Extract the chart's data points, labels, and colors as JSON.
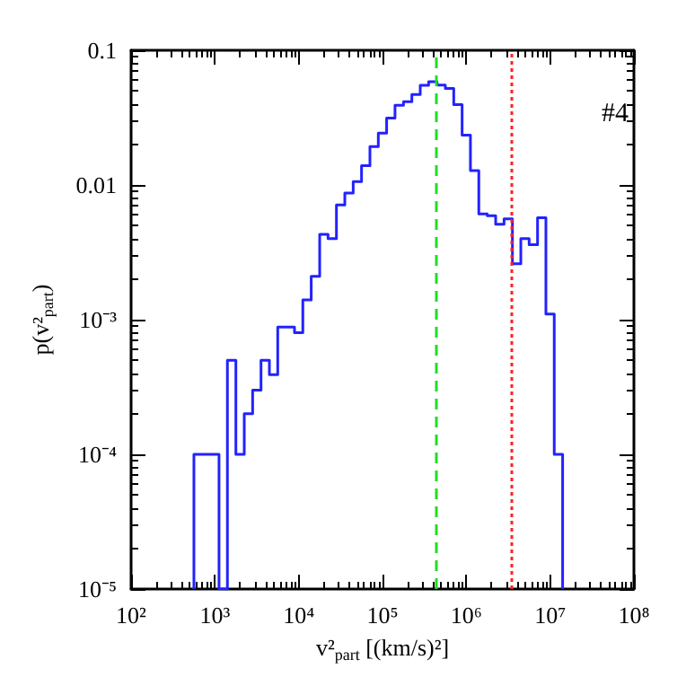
{
  "chart_data": {
    "type": "histogram",
    "xlabel": "v²$_{part}$ [(km/s)²]",
    "ylabel": "p(v²$_{part}$)",
    "annotations": [
      "#4"
    ],
    "log": "xy",
    "color": "#2222ff",
    "bins": [
      562,
      708,
      891,
      1120,
      1410,
      1780,
      2240,
      2820,
      3550,
      4470,
      5620,
      7080,
      8910,
      11200,
      14100,
      17800,
      22400,
      28200,
      35500,
      44700,
      56200,
      70800,
      89100,
      112000,
      141000,
      178000,
      224000,
      282000,
      355000,
      447000,
      562000,
      708000,
      891000,
      1120000,
      1410000,
      1780000,
      2240000,
      2820000,
      3550000,
      4470000,
      5620000,
      7080000,
      8910000,
      11200000,
      14100000
    ],
    "values": [
      0.0001,
      0.0001,
      0.0001,
      null,
      0.0005,
      0.0001,
      0.0002,
      0.0003,
      0.0005,
      0.00039,
      0.00088,
      0.00088,
      0.0008,
      0.0014,
      0.0021,
      0.0043,
      0.004,
      0.0071,
      0.0087,
      0.0106,
      0.0139,
      0.0193,
      0.0243,
      0.0314,
      0.039,
      0.0415,
      0.047,
      0.055,
      0.0585,
      0.0552,
      0.052,
      0.0395,
      0.0234,
      0.0128,
      0.0061,
      0.0059,
      0.0051,
      0.0056,
      0.0026,
      0.004,
      0.0036,
      0.0057,
      0.0011,
      0.0001
    ],
    "xlim": [
      100,
      100000000
    ],
    "ylim": [
      1e-05,
      0.1
    ],
    "xticks": [
      {
        "value": 100,
        "label": "10²"
      },
      {
        "value": 1000,
        "label": "10³"
      },
      {
        "value": 10000,
        "label": "10⁴"
      },
      {
        "value": 100000,
        "label": "10⁵"
      },
      {
        "value": 1000000,
        "label": "10⁶"
      },
      {
        "value": 10000000,
        "label": "10⁷"
      },
      {
        "value": 100000000,
        "label": "10⁸"
      }
    ],
    "yticks": [
      {
        "value": 1e-05,
        "label": "10⁻⁵"
      },
      {
        "value": 0.0001,
        "label": "10⁻⁴"
      },
      {
        "value": 0.001,
        "label": "10⁻³"
      },
      0.01,
      0.1
    ],
    "ref_lines": [
      {
        "axis": "x",
        "value": 430000,
        "color": "#22dd22",
        "line_style": "dashed"
      },
      {
        "axis": "x",
        "value": 3500000,
        "color": "#ff2222",
        "line_style": "dotted"
      }
    ],
    "grid": false
  }
}
